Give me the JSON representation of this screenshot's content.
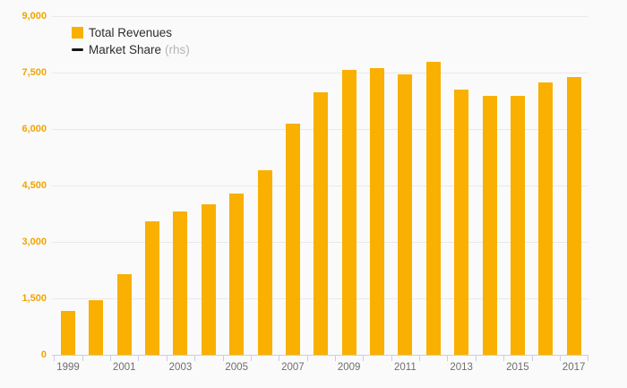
{
  "colors": {
    "background": "#fafafa",
    "bar_fill": "#f9b000",
    "grid_line": "#e9e9e9",
    "axis_line": "#c7cfe2",
    "y_label": "#f0a502",
    "x_label": "#6e6e6e",
    "legend_text": "#2d2d2d",
    "legend_suffix": "#b5b5b5",
    "line_swatch": "#161616"
  },
  "legend": {
    "items": [
      {
        "label": "Total Revenues",
        "suffix": "",
        "swatch": "square",
        "color": "#f9b000"
      },
      {
        "label": "Market Share",
        "suffix": "(rhs)",
        "swatch": "dash",
        "color": "#161616"
      }
    ]
  },
  "chart_data": {
    "type": "bar",
    "title": "",
    "xlabel": "",
    "ylabel": "",
    "categories": [
      "1999",
      "2000",
      "2001",
      "2002",
      "2003",
      "2004",
      "2005",
      "2006",
      "2007",
      "2008",
      "2009",
      "2010",
      "2011",
      "2012",
      "2013",
      "2014",
      "2015",
      "2016",
      "2017"
    ],
    "series": [
      {
        "name": "Total Revenues",
        "type": "bar",
        "color": "#f9b000",
        "values": [
          1160,
          1460,
          2140,
          3550,
          3800,
          4010,
          4280,
          4900,
          6140,
          6980,
          7580,
          7610,
          7460,
          7780,
          7040,
          6880,
          6880,
          7230,
          7370
        ]
      },
      {
        "name": "Market Share (rhs)",
        "type": "line",
        "color": "#161616",
        "values": []
      }
    ],
    "ylim": [
      0,
      9000
    ],
    "ytick_step": 1500,
    "ytick_labels": [
      "0",
      "1,500",
      "3,000",
      "4,500",
      "6,000",
      "7,500",
      "9,000"
    ],
    "xtick_labels_shown": [
      "1999",
      "2001",
      "2003",
      "2005",
      "2007",
      "2009",
      "2011",
      "2013",
      "2015",
      "2017"
    ],
    "grid": true,
    "legend_position": "top-left"
  }
}
